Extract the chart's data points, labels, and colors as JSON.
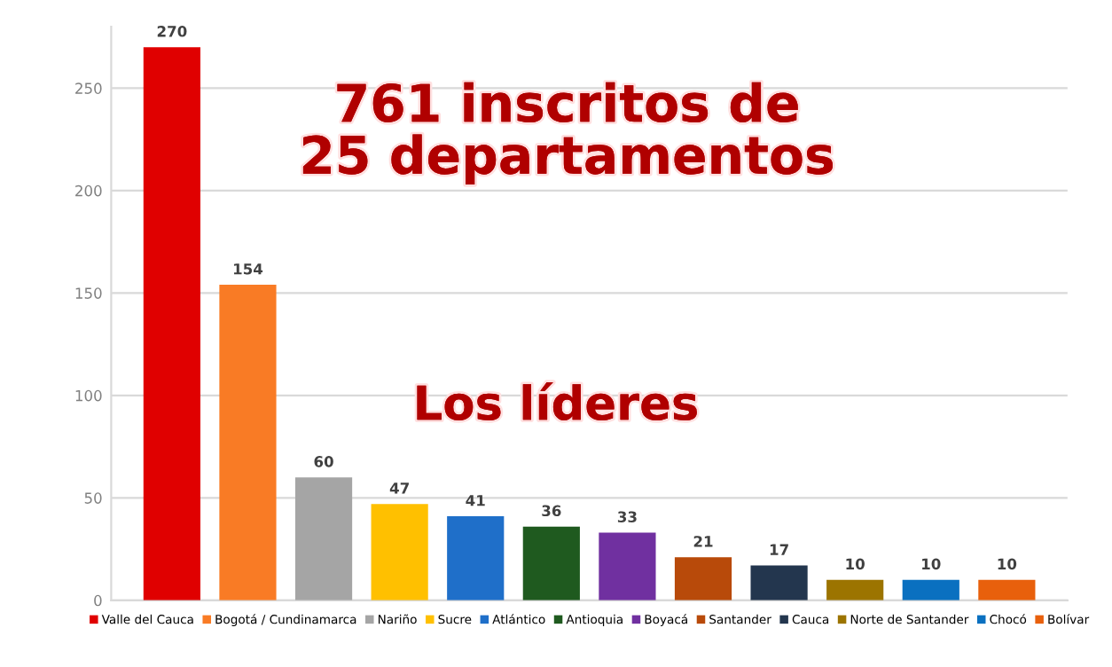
{
  "chart_data": {
    "type": "bar",
    "categories": [
      null
    ],
    "series": [
      {
        "name": "Valle del Cauca",
        "color": "#e00000",
        "values": [
          270
        ]
      },
      {
        "name": "Bogotá / Cundinamarca",
        "color": "#f97b25",
        "values": [
          154
        ]
      },
      {
        "name": "Nariño",
        "color": "#a5a5a5",
        "values": [
          60
        ]
      },
      {
        "name": "Sucre",
        "color": "#ffc000",
        "values": [
          47
        ]
      },
      {
        "name": "Atlántico",
        "color": "#1f6fc9",
        "values": [
          41
        ]
      },
      {
        "name": "Antioquia",
        "color": "#1f5a1f",
        "values": [
          36
        ]
      },
      {
        "name": "Boyacá",
        "color": "#7030a0",
        "values": [
          33
        ]
      },
      {
        "name": "Santander",
        "color": "#b84a0a",
        "values": [
          21
        ]
      },
      {
        "name": "Cauca",
        "color": "#23364e",
        "values": [
          17
        ]
      },
      {
        "name": "Norte de Santander",
        "color": "#9c7400",
        "values": [
          10
        ]
      },
      {
        "name": "Chocó",
        "color": "#0a70c0",
        "values": [
          10
        ]
      },
      {
        "name": "Bolívar",
        "color": "#e8600c",
        "values": [
          10
        ]
      }
    ],
    "ylim": [
      0,
      280
    ],
    "yticks": [
      0,
      50,
      100,
      150,
      200,
      250
    ],
    "grid": "y",
    "legend": "bottom",
    "data_labels": true,
    "annotations": [
      "761 inscritos de\n25 departamentos",
      "Los líderes"
    ]
  }
}
